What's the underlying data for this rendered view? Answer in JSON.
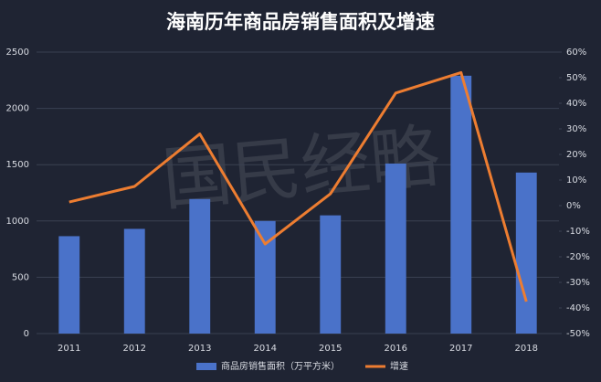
{
  "chart_data": {
    "type": "bar-line",
    "title": "海南历年商品房销售面积及增速",
    "watermark": "国民经略",
    "categories": [
      "2011",
      "2012",
      "2013",
      "2014",
      "2015",
      "2016",
      "2017",
      "2018"
    ],
    "series": [
      {
        "name": "商品房销售面积（万平方米）",
        "color": "#4a72c9",
        "type": "bar",
        "values": [
          865,
          930,
          1195,
          1000,
          1050,
          1510,
          2290,
          1430
        ]
      },
      {
        "name": "增速",
        "color": "#ed7d31",
        "type": "line",
        "axis": "y2",
        "values": [
          1.4,
          7.5,
          28,
          -15,
          4.6,
          44,
          52,
          -37.5
        ]
      }
    ],
    "ylim": [
      0,
      2500
    ],
    "yticks": [
      0,
      500,
      1000,
      1500,
      2000,
      2500
    ],
    "y2lim": [
      -50,
      60
    ],
    "y2ticks": [
      {
        "value": -50,
        "label": "-50%"
      },
      {
        "value": -40,
        "label": "-40%"
      },
      {
        "value": -30,
        "label": "-30%"
      },
      {
        "value": -20,
        "label": "-20%"
      },
      {
        "value": -10,
        "label": "-10%"
      },
      {
        "value": 0,
        "label": "0%"
      },
      {
        "value": 10,
        "label": "10%"
      },
      {
        "value": 20,
        "label": "20%"
      },
      {
        "value": 30,
        "label": "30%"
      },
      {
        "value": 40,
        "label": "40%"
      },
      {
        "value": 50,
        "label": "50%"
      },
      {
        "value": 60,
        "label": "60%"
      }
    ],
    "grid": true,
    "legend": "bottom"
  }
}
